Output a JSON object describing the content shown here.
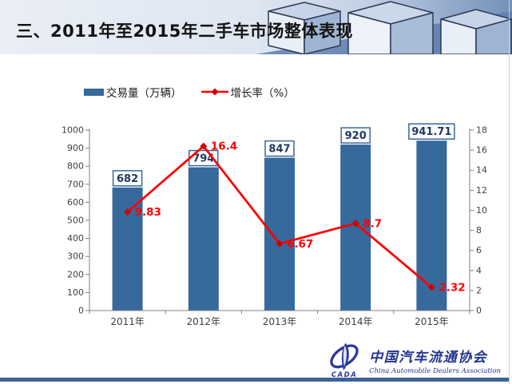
{
  "slide": {
    "title": "三、2011年至2015年二手车市场整体表现"
  },
  "legend": {
    "items": [
      {
        "label": "交易量（万辆）",
        "swatch": "bar-swatch",
        "color": "#36699C"
      },
      {
        "label": "增长率（%）",
        "swatch": "line-diamond-swatch",
        "color": "#FF0000"
      }
    ]
  },
  "chart_data": {
    "type": "bar+line combo",
    "title": "",
    "categories": [
      "2011年",
      "2012年",
      "2013年",
      "2014年",
      "2015年"
    ],
    "series": [
      {
        "name": "交易量（万辆）",
        "chart": "bar",
        "axis": "left",
        "color": "#36699C",
        "values": [
          682,
          794,
          847,
          920,
          941.71
        ],
        "data_labels": [
          "682",
          "794",
          "847",
          "920",
          "941.71"
        ]
      },
      {
        "name": "增长率（%）",
        "chart": "line",
        "axis": "right",
        "color": "#FF0000",
        "marker": "diamond",
        "marker_color": "#CC0000",
        "values": [
          9.83,
          16.4,
          6.67,
          8.7,
          2.32
        ],
        "data_labels": [
          "9.83",
          "16.4",
          "6.67",
          "8.7",
          "2.32"
        ]
      }
    ],
    "left_axis": {
      "min": 0,
      "max": 1000,
      "step": 100,
      "ticks": [
        "0",
        "100",
        "200",
        "300",
        "400",
        "500",
        "600",
        "700",
        "800",
        "900",
        "1000"
      ]
    },
    "right_axis": {
      "min": 0,
      "max": 18,
      "step": 2,
      "ticks": [
        "0",
        "2",
        "4",
        "6",
        "8",
        "10",
        "12",
        "14",
        "16",
        "18"
      ]
    },
    "grid": false,
    "legend_position": "top"
  },
  "footer": {
    "logo_acronym": "CADA",
    "org_name_cn": "中国汽车流通协会",
    "org_name_en": "China Automobile Dealers Association"
  },
  "colors": {
    "bar": "#36699C",
    "line": "#FF0000",
    "marker": "#CC0000",
    "value_box_text": "#1F3864",
    "value_box_border": "#36699C",
    "axis_line": "#808080",
    "axis_text": "#404040",
    "bottom_bar": "#3E6295",
    "logo_blue": "#2B39A0"
  }
}
